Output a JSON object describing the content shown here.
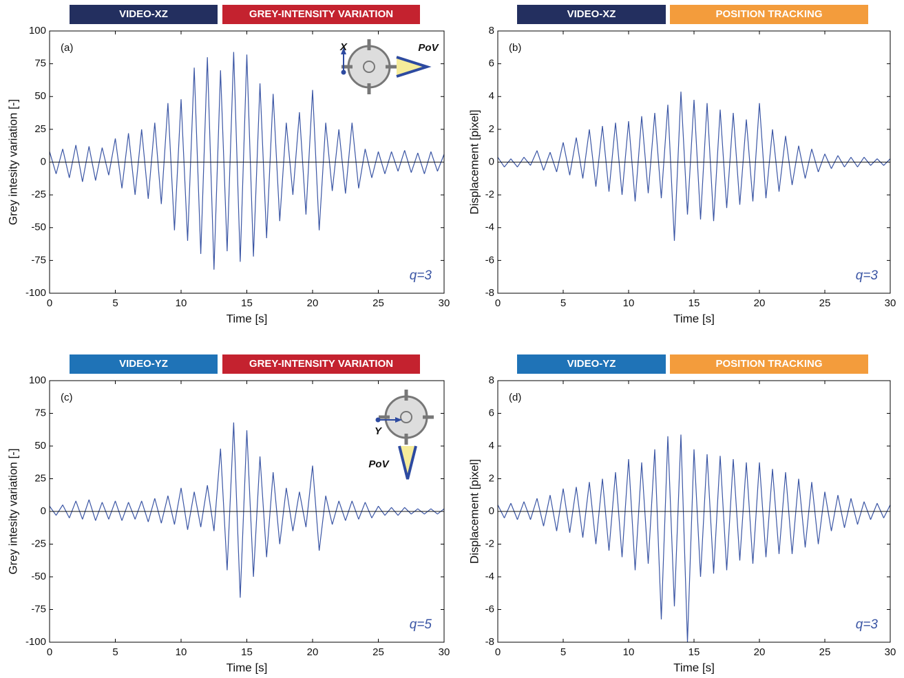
{
  "chart_data": [
    {
      "type": "line",
      "headers": [
        {
          "text": "VIDEO-XZ",
          "color": "#232f5f"
        },
        {
          "text": "GREY-INTENSITY VARIATION",
          "color": "#c4222f"
        }
      ],
      "panel_label": "(a)",
      "annotation": "q=3",
      "inset_labels": [
        "X",
        "PoV"
      ],
      "xlabel": "Time [s]",
      "ylabel": "Grey intesity variation [-]",
      "color": "#3a55a4",
      "xlim": [
        0,
        30
      ],
      "xticks": [
        0,
        5,
        10,
        15,
        20,
        25,
        30
      ],
      "ylim": [
        -100,
        100
      ],
      "yticks": [
        -100,
        -75,
        -50,
        -25,
        0,
        25,
        50,
        75,
        100
      ],
      "x": [
        0,
        0.5,
        1,
        1.5,
        2,
        2.5,
        3,
        3.5,
        4,
        4.5,
        5,
        5.5,
        6,
        6.5,
        7,
        7.5,
        8,
        8.5,
        9,
        9.5,
        10,
        10.5,
        11,
        11.5,
        12,
        12.5,
        13,
        13.5,
        14,
        14.5,
        15,
        15.5,
        16,
        16.5,
        17,
        17.5,
        18,
        18.5,
        19,
        19.5,
        20,
        20.5,
        21,
        21.5,
        22,
        22.5,
        23,
        23.5,
        24,
        24.5,
        25,
        25.5,
        26,
        26.5,
        27,
        27.5,
        28,
        28.5,
        29,
        29.5,
        30
      ],
      "values": [
        8,
        -9,
        10,
        -12,
        13,
        -15,
        12,
        -14,
        11,
        -10,
        18,
        -20,
        22,
        -25,
        25,
        -28,
        30,
        -32,
        45,
        -52,
        48,
        -60,
        72,
        -70,
        80,
        -82,
        70,
        -68,
        84,
        -76,
        82,
        -72,
        60,
        -58,
        52,
        -45,
        30,
        -25,
        38,
        -40,
        55,
        -52,
        30,
        -22,
        25,
        -24,
        30,
        -20,
        10,
        -12,
        8,
        -9,
        8,
        -7,
        9,
        -8,
        7,
        -9,
        8,
        -7,
        6
      ]
    },
    {
      "type": "line",
      "headers": [
        {
          "text": "VIDEO-XZ",
          "color": "#232f5f"
        },
        {
          "text": "POSITION TRACKING",
          "color": "#f39c3c"
        }
      ],
      "panel_label": "(b)",
      "annotation": "q=3",
      "xlabel": "Time [s]",
      "ylabel": "Displacement [pixel]",
      "color": "#3a55a4",
      "xlim": [
        0,
        30
      ],
      "xticks": [
        0,
        5,
        10,
        15,
        20,
        25,
        30
      ],
      "ylim": [
        -8,
        8
      ],
      "yticks": [
        -8,
        -6,
        -4,
        -2,
        0,
        2,
        4,
        6,
        8
      ],
      "x": [
        0,
        0.5,
        1,
        1.5,
        2,
        2.5,
        3,
        3.5,
        4,
        4.5,
        5,
        5.5,
        6,
        6.5,
        7,
        7.5,
        8,
        8.5,
        9,
        9.5,
        10,
        10.5,
        11,
        11.5,
        12,
        12.5,
        13,
        13.5,
        14,
        14.5,
        15,
        15.5,
        16,
        16.5,
        17,
        17.5,
        18,
        18.5,
        19,
        19.5,
        20,
        20.5,
        21,
        21.5,
        22,
        22.5,
        23,
        23.5,
        24,
        24.5,
        25,
        25.5,
        26,
        26.5,
        27,
        27.5,
        28,
        28.5,
        29,
        29.5,
        30
      ],
      "values": [
        0.3,
        -0.3,
        0.2,
        -0.3,
        0.3,
        -0.2,
        0.7,
        -0.5,
        0.6,
        -0.6,
        1.2,
        -0.8,
        1.5,
        -1.0,
        2.0,
        -1.5,
        2.2,
        -1.8,
        2.4,
        -2.0,
        2.5,
        -2.4,
        2.8,
        -1.9,
        3.0,
        -2.2,
        3.5,
        -4.8,
        4.3,
        -3.2,
        3.8,
        -3.5,
        3.6,
        -3.6,
        3.2,
        -2.8,
        3.0,
        -2.6,
        2.6,
        -2.4,
        3.6,
        -2.2,
        2.0,
        -1.8,
        1.6,
        -1.4,
        1.0,
        -1.0,
        0.8,
        -0.6,
        0.5,
        -0.4,
        0.4,
        -0.3,
        0.3,
        -0.3,
        0.3,
        -0.2,
        0.2,
        -0.2,
        0.2
      ]
    },
    {
      "type": "line",
      "headers": [
        {
          "text": "VIDEO-YZ",
          "color": "#1f73b7"
        },
        {
          "text": "GREY-INTENSITY VARIATION",
          "color": "#c4222f"
        }
      ],
      "panel_label": "(c)",
      "annotation": "q=5",
      "inset_labels": [
        "Y",
        "PoV"
      ],
      "xlabel": "Time [s]",
      "ylabel": "Grey intesity variation [-]",
      "color": "#3a55a4",
      "xlim": [
        0,
        30
      ],
      "xticks": [
        0,
        5,
        10,
        15,
        20,
        25,
        30
      ],
      "ylim": [
        -100,
        100
      ],
      "yticks": [
        -100,
        -75,
        -50,
        -25,
        0,
        25,
        50,
        75,
        100
      ],
      "x": [
        0,
        0.5,
        1,
        1.5,
        2,
        2.5,
        3,
        3.5,
        4,
        4.5,
        5,
        5.5,
        6,
        6.5,
        7,
        7.5,
        8,
        8.5,
        9,
        9.5,
        10,
        10.5,
        11,
        11.5,
        12,
        12.5,
        13,
        13.5,
        14,
        14.5,
        15,
        15.5,
        16,
        16.5,
        17,
        17.5,
        18,
        18.5,
        19,
        19.5,
        20,
        20.5,
        21,
        21.5,
        22,
        22.5,
        23,
        23.5,
        24,
        24.5,
        25,
        25.5,
        26,
        26.5,
        27,
        27.5,
        28,
        28.5,
        29,
        29.5,
        30
      ],
      "values": [
        4,
        -3,
        5,
        -5,
        8,
        -6,
        9,
        -7,
        7,
        -6,
        8,
        -7,
        7,
        -6,
        8,
        -8,
        10,
        -9,
        12,
        -10,
        18,
        -14,
        15,
        -12,
        20,
        -15,
        48,
        -45,
        68,
        -66,
        62,
        -50,
        42,
        -35,
        30,
        -25,
        18,
        -15,
        15,
        -12,
        35,
        -30,
        12,
        -10,
        8,
        -7,
        8,
        -6,
        7,
        -5,
        4,
        -3,
        3,
        -3,
        3,
        -2,
        2,
        -2,
        2,
        -2,
        2
      ]
    },
    {
      "type": "line",
      "headers": [
        {
          "text": "VIDEO-YZ",
          "color": "#1f73b7"
        },
        {
          "text": "POSITION TRACKING",
          "color": "#f39c3c"
        }
      ],
      "panel_label": "(d)",
      "annotation": "q=3",
      "xlabel": "Time [s]",
      "ylabel": "Displacement [pixel]",
      "color": "#3a55a4",
      "xlim": [
        0,
        30
      ],
      "xticks": [
        0,
        5,
        10,
        15,
        20,
        25,
        30
      ],
      "ylim": [
        -8,
        8
      ],
      "yticks": [
        -8,
        -6,
        -4,
        -2,
        0,
        2,
        4,
        6,
        8
      ],
      "x": [
        0,
        0.5,
        1,
        1.5,
        2,
        2.5,
        3,
        3.5,
        4,
        4.5,
        5,
        5.5,
        6,
        6.5,
        7,
        7.5,
        8,
        8.5,
        9,
        9.5,
        10,
        10.5,
        11,
        11.5,
        12,
        12.5,
        13,
        13.5,
        14,
        14.5,
        15,
        15.5,
        16,
        16.5,
        17,
        17.5,
        18,
        18.5,
        19,
        19.5,
        20,
        20.5,
        21,
        21.5,
        22,
        22.5,
        23,
        23.5,
        24,
        24.5,
        25,
        25.5,
        26,
        26.5,
        27,
        27.5,
        28,
        28.5,
        29,
        29.5,
        30
      ],
      "values": [
        0.4,
        -0.4,
        0.5,
        -0.5,
        0.6,
        -0.5,
        0.8,
        -0.9,
        1.0,
        -1.2,
        1.4,
        -1.3,
        1.5,
        -1.6,
        1.8,
        -2.0,
        2.0,
        -2.4,
        2.4,
        -2.8,
        3.2,
        -3.6,
        3.0,
        -3.2,
        3.8,
        -6.6,
        4.6,
        -5.8,
        4.7,
        -8.0,
        3.8,
        -4.0,
        3.5,
        -3.8,
        3.4,
        -3.6,
        3.2,
        -3.0,
        3.0,
        -3.2,
        3.0,
        -2.8,
        2.6,
        -2.6,
        2.4,
        -2.6,
        2.0,
        -2.2,
        1.8,
        -2.0,
        1.2,
        -1.2,
        1.0,
        -1.0,
        0.8,
        -0.8,
        0.6,
        -0.5,
        0.5,
        -0.4,
        0.4
      ]
    }
  ]
}
